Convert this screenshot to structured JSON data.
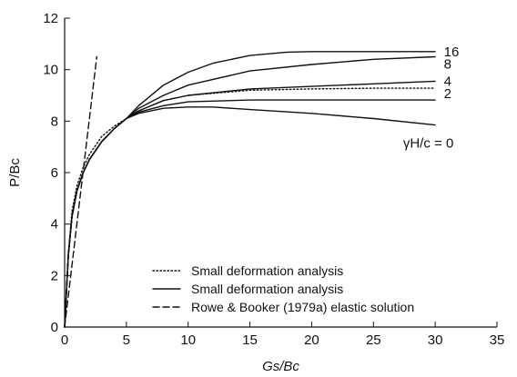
{
  "chart_data": {
    "type": "line",
    "xlabel": "Gs/Bc",
    "ylabel": "P/Bc",
    "xlim": [
      0,
      35
    ],
    "ylim": [
      0,
      12
    ],
    "xticks": [
      0,
      5,
      10,
      15,
      20,
      25,
      30,
      35
    ],
    "yticks": [
      0,
      2,
      4,
      6,
      8,
      10,
      12
    ],
    "grid": false,
    "legend_position": "bottom-center",
    "legend": [
      {
        "label": "Small deformation analysis",
        "style": "dotted"
      },
      {
        "label": "Small deformation analysis",
        "style": "solid"
      },
      {
        "label": "Rowe & Booker (1979a) elastic solution",
        "style": "dashed"
      }
    ],
    "series": [
      {
        "name": "16",
        "style": "solid",
        "x": [
          0,
          0.3,
          0.6,
          1,
          1.5,
          2,
          3,
          4,
          5,
          6,
          8,
          10,
          12,
          15,
          18,
          20,
          25,
          30
        ],
        "y": [
          0,
          2.8,
          4.3,
          5.3,
          6.0,
          6.5,
          7.2,
          7.7,
          8.1,
          8.6,
          9.4,
          9.9,
          10.25,
          10.55,
          10.68,
          10.7,
          10.7,
          10.7
        ]
      },
      {
        "name": "8",
        "style": "solid",
        "x": [
          0,
          0.3,
          0.6,
          1,
          1.5,
          2,
          3,
          4,
          5,
          6,
          8,
          10,
          15,
          20,
          25,
          30
        ],
        "y": [
          0,
          2.8,
          4.3,
          5.3,
          6.0,
          6.5,
          7.2,
          7.7,
          8.1,
          8.5,
          9.0,
          9.4,
          9.95,
          10.2,
          10.4,
          10.5
        ]
      },
      {
        "name": "4",
        "style": "solid",
        "x": [
          0,
          0.3,
          0.6,
          1,
          1.5,
          2,
          3,
          4,
          5,
          6,
          8,
          10,
          15,
          20,
          25,
          30
        ],
        "y": [
          0,
          2.8,
          4.3,
          5.3,
          6.0,
          6.5,
          7.2,
          7.7,
          8.1,
          8.4,
          8.8,
          9.0,
          9.25,
          9.35,
          9.45,
          9.55
        ]
      },
      {
        "name": "dotted",
        "style": "dotted",
        "x": [
          0,
          0.3,
          0.6,
          1,
          1.5,
          2,
          3,
          4,
          5,
          6,
          8,
          10,
          15,
          20,
          25,
          30
        ],
        "y": [
          0,
          2.9,
          4.5,
          5.5,
          6.2,
          6.7,
          7.4,
          7.8,
          8.1,
          8.4,
          8.8,
          9.0,
          9.2,
          9.25,
          9.28,
          9.28
        ]
      },
      {
        "name": "2",
        "style": "solid",
        "x": [
          0,
          0.3,
          0.6,
          1,
          1.5,
          2,
          3,
          4,
          5,
          6,
          8,
          10,
          15,
          20,
          25,
          30
        ],
        "y": [
          0,
          2.8,
          4.3,
          5.3,
          6.0,
          6.5,
          7.2,
          7.7,
          8.1,
          8.35,
          8.6,
          8.75,
          8.82,
          8.82,
          8.82,
          8.82
        ]
      },
      {
        "name": "γH/c = 0",
        "style": "solid",
        "x": [
          0,
          0.3,
          0.6,
          1,
          1.5,
          2,
          3,
          4,
          5,
          6,
          8,
          10,
          12,
          15,
          20,
          25,
          30
        ],
        "y": [
          0,
          2.8,
          4.3,
          5.3,
          6.0,
          6.5,
          7.2,
          7.7,
          8.1,
          8.3,
          8.5,
          8.55,
          8.55,
          8.45,
          8.3,
          8.1,
          7.85
        ]
      },
      {
        "name": "Rowe & Booker (1979a) elastic solution",
        "style": "dashed",
        "x": [
          0,
          2.6
        ],
        "y": [
          0,
          10.5
        ]
      }
    ],
    "end_labels": [
      "16",
      "8",
      "4",
      "2",
      "γH/c = 0"
    ]
  }
}
